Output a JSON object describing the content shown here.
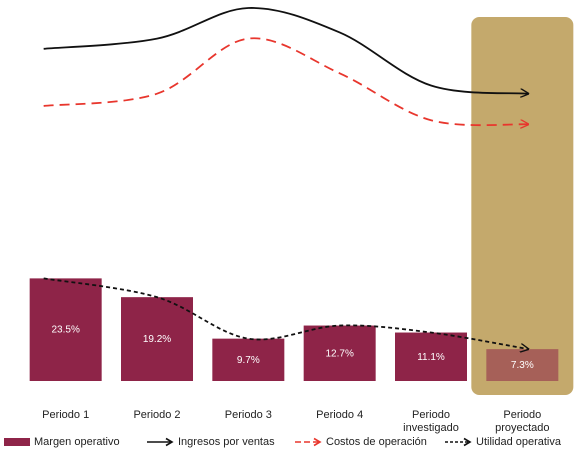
{
  "chart_data": {
    "type": "bar",
    "categories": [
      "Periodo 1",
      "Periodo 2",
      "Periodo 3",
      "Periodo 4",
      "Periodo\ninvestigado",
      "Periodo\nproyectado"
    ],
    "highlighted_category": "Periodo\nproyectado",
    "series": [
      {
        "name": "Margen operativo",
        "kind": "bar",
        "values": [
          23.5,
          19.2,
          9.7,
          12.7,
          11.1,
          7.3
        ],
        "labels": [
          "23.5%",
          "19.2%",
          "9.7%",
          "12.7%",
          "11.1%",
          "7.3%"
        ]
      },
      {
        "name": "Ingresos por ventas",
        "kind": "line",
        "style": "solid",
        "values": [
          80,
          85,
          100,
          88,
          62,
          58
        ],
        "arrow": true
      },
      {
        "name": "Costos de operación",
        "kind": "line",
        "style": "dashed",
        "values": [
          52,
          58,
          85,
          68,
          45,
          43
        ],
        "arrow": true
      },
      {
        "name": "Utilidad operativa",
        "kind": "line",
        "style": "dotted",
        "values": [
          23.5,
          19.2,
          9.7,
          12.7,
          11.1,
          7.3
        ],
        "arrow": true
      }
    ],
    "ylim_bars": [
      0,
      30
    ],
    "ylim_lines": [
      0,
      100
    ],
    "grid": false,
    "legend_position": "bottom",
    "colors": {
      "bar": "#8e2448",
      "highlight_band": "#c4a96c",
      "ingresos": "#111111",
      "costos": "#e8362d",
      "utilidad": "#111111"
    }
  },
  "legend": [
    {
      "label": "Margen operativo",
      "swatch": "bar"
    },
    {
      "label": "Ingresos por ventas",
      "swatch": "solid-arrow"
    },
    {
      "label": "Costos de operación",
      "swatch": "dashed-arrow"
    },
    {
      "label": "Utilidad operativa",
      "swatch": "dotted-arrow"
    }
  ]
}
